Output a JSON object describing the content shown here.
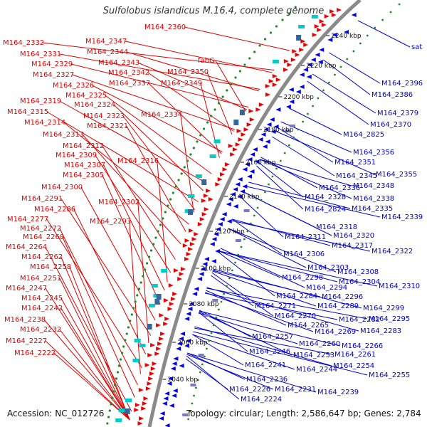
{
  "title": "Sulfolobus islandicus M.16.4, complete genome",
  "accession": "Accession: NC_012726",
  "summary": "Topology: circular; Length: 2,586,647 bp; Genes: 2,784",
  "colors": {
    "forward_label": "#dd0000",
    "reverse_label": "#0000cc",
    "backbone": "#8a8a8a",
    "gc_dots": "#228822",
    "orf_cyan": "#00cccc"
  },
  "ticks": [
    "2040 kbp",
    "2060 kbp",
    "2080 kbp",
    "2100 kbp",
    "2120 kbp",
    "2140 kbp",
    "2160 kbp",
    "2180 kbp",
    "2200 kbp",
    "2220 kbp",
    "2240 kbp"
  ],
  "left_labels": [
    "M164_2360",
    "M164_2332",
    "M164_2347",
    "M164_2331",
    "M164_2344",
    "M164_2329",
    "M164_2343",
    "fabG",
    "M164_2327",
    "M164_2342",
    "M164_2350",
    "M164_2326",
    "M164_2337",
    "M164_2349",
    "M164_2325",
    "M164_2319",
    "M164_2324",
    "M164_2315",
    "M164_2323",
    "M164_2334",
    "M164_2314",
    "M164_2321",
    "M164_2313",
    "M164_2312",
    "M164_2309",
    "M164_2316",
    "M164_2307",
    "M164_2305",
    "M164_2300",
    "M164_2291",
    "M164_2302",
    "M164_2286",
    "M164_2277",
    "M164_2293",
    "M164_2272",
    "M164_2268",
    "M164_2264",
    "M164_2262",
    "M164_2258",
    "M164_2251",
    "M164_2247",
    "M164_2245",
    "M164_2242",
    "M164_2238",
    "M164_2232",
    "M164_2227",
    "M164_2222"
  ],
  "right_labels": [
    "sat",
    "M164_2396",
    "M164_2386",
    "M164_2379",
    "M164_2370",
    "M164_2825",
    "M164_2356",
    "M164_2351",
    "M164_2345",
    "M164_2355",
    "M164_2348",
    "M164_2336",
    "M164_2328",
    "M164_2338",
    "M164_2824",
    "M164_2335",
    "M164_2339",
    "M164_2318",
    "M164_2311",
    "M164_2320",
    "M164_2317",
    "M164_2322",
    "M164_2306",
    "M164_2303",
    "M164_2308",
    "M164_2298",
    "M164_2304",
    "M164_2310",
    "M164_2294",
    "M164_2284",
    "M164_2296",
    "M164_2271",
    "M164_2289",
    "M164_2299",
    "M164_2270",
    "M164_2282",
    "M164_2295",
    "M164_2265",
    "M164_2269",
    "M164_2283",
    "M164_2257",
    "M164_2260",
    "M164_2266",
    "M164_2246",
    "M164_2253",
    "M164_2261",
    "M164_2241",
    "M164_2244",
    "M164_2254",
    "M164_2255",
    "M164_2236",
    "M164_2226",
    "M164_2231",
    "M164_2239",
    "M164_2224"
  ]
}
